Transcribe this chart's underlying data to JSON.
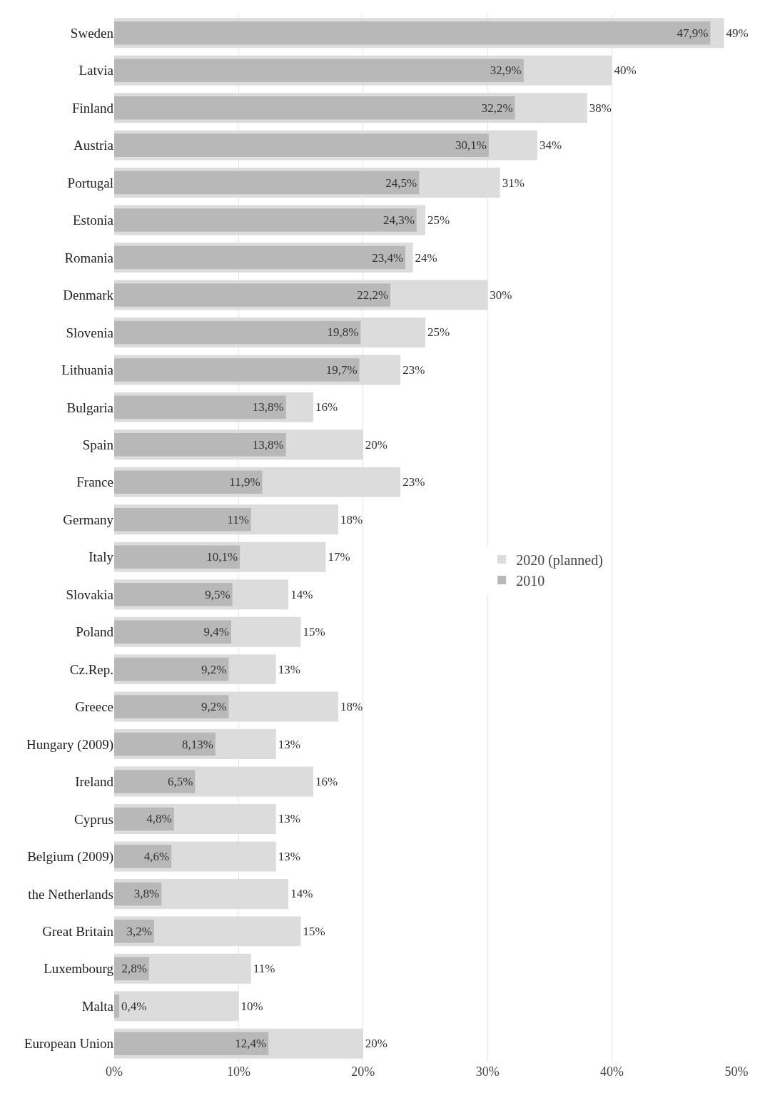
{
  "chart_data": {
    "type": "bar",
    "orientation": "horizontal",
    "categories": [
      "Sweden",
      "Latvia",
      "Finland",
      "Austria",
      "Portugal",
      "Estonia",
      "Romania",
      "Denmark",
      "Slovenia",
      "Lithuania",
      "Bulgaria",
      "Spain",
      "France",
      "Germany",
      "Italy",
      "Slovakia",
      "Poland",
      "Cz.Rep.",
      "Greece",
      "Hungary (2009)",
      "Ireland",
      "Cyprus",
      "Belgium (2009)",
      "the Netherlands",
      "Great Britain",
      "Luxembourg",
      "Malta",
      "European Union"
    ],
    "series": [
      {
        "name": "2020 (planned)",
        "color": "#dcdcdc",
        "values": [
          49,
          40,
          38,
          34,
          31,
          25,
          24,
          30,
          25,
          23,
          16,
          20,
          23,
          18,
          17,
          14,
          15,
          13,
          18,
          13,
          16,
          13,
          13,
          14,
          15,
          11,
          10,
          20
        ],
        "value_labels": [
          "49%",
          "40%",
          "38%",
          "34%",
          "31%",
          "25%",
          "24%",
          "30%",
          "25%",
          "23%",
          "16%",
          "20%",
          "23%",
          "18%",
          "17%",
          "14%",
          "15%",
          "13%",
          "18%",
          "13%",
          "16%",
          "13%",
          "13%",
          "14%",
          "15%",
          "11%",
          "10%",
          "20%"
        ]
      },
      {
        "name": "2010",
        "color": "#b8b8b8",
        "values": [
          47.9,
          32.9,
          32.2,
          30.1,
          24.5,
          24.3,
          23.4,
          22.2,
          19.8,
          19.7,
          13.8,
          13.8,
          11.9,
          11,
          10.1,
          9.5,
          9.4,
          9.2,
          9.2,
          8.13,
          6.5,
          4.8,
          4.6,
          3.8,
          3.2,
          2.8,
          0.4,
          12.4
        ],
        "value_labels": [
          "47,9%",
          "32,9%",
          "32,2%",
          "30,1%",
          "24,5%",
          "24,3%",
          "23,4%",
          "22,2%",
          "19,8%",
          "19,7%",
          "13,8%",
          "13,8%",
          "11,9%",
          "11%",
          "10,1%",
          "9,5%",
          "9,4%",
          "9,2%",
          "9,2%",
          "8,13%",
          "6,5%",
          "4,8%",
          "4,6%",
          "3,8%",
          "3,2%",
          "2,8%",
          "0,4%",
          "12,4%"
        ]
      }
    ],
    "xlim": [
      0,
      50
    ],
    "xticks": [
      {
        "value": 0,
        "label": "0%"
      },
      {
        "value": 10,
        "label": "10%"
      },
      {
        "value": 20,
        "label": "20%"
      },
      {
        "value": 30,
        "label": "30%"
      },
      {
        "value": 40,
        "label": "40%"
      },
      {
        "value": 50,
        "label": "50%"
      }
    ],
    "grid": "x",
    "legend": "right"
  }
}
